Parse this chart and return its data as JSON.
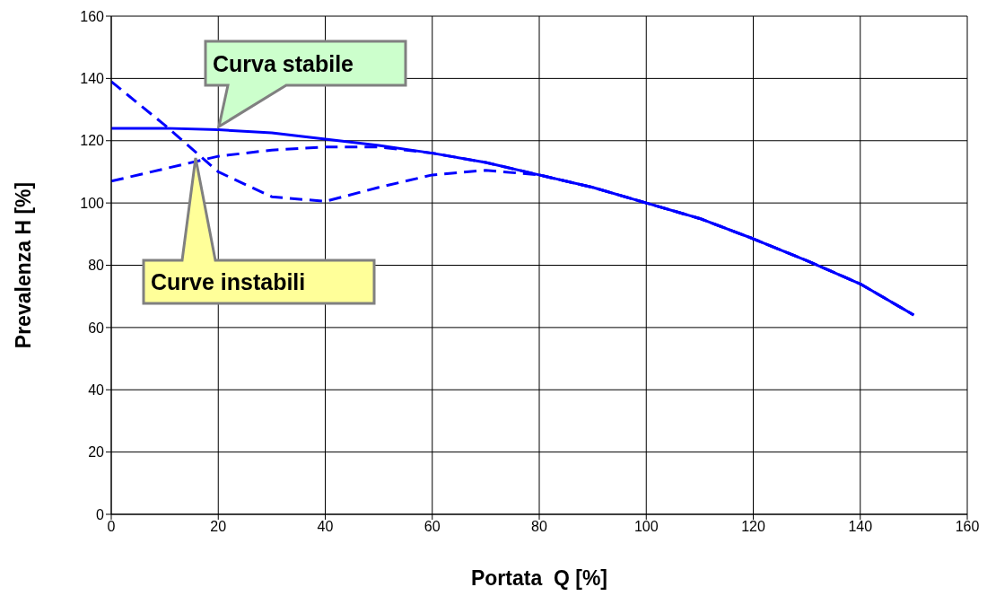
{
  "chart_data": {
    "type": "line",
    "xlabel": "Portata  Q [%]",
    "ylabel": "Prevalenza H [%]",
    "x": [
      0,
      10,
      20,
      30,
      40,
      50,
      60,
      70,
      80,
      90,
      100,
      110,
      120,
      130,
      140,
      150
    ],
    "series": [
      {
        "color": "#0000ff",
        "line_style": "solid",
        "values": [
          124,
          124,
          123.5,
          122.5,
          120.5,
          118.5,
          116,
          113,
          109,
          105,
          100,
          95,
          88.5,
          81.5,
          74,
          64
        ]
      },
      {
        "color": "#0000ff",
        "line_style": "dashed",
        "values": [
          107,
          111,
          115,
          117,
          118,
          118,
          116,
          113,
          109,
          105,
          100,
          95,
          88.5,
          81.5,
          74,
          64
        ]
      },
      {
        "color": "#0000ff",
        "line_style": "dashed",
        "values": [
          139,
          125,
          110,
          102,
          100.5,
          105,
          109,
          110.5,
          109,
          105,
          100,
          95,
          88.5,
          81.5,
          74,
          64
        ]
      }
    ],
    "annotations": [
      "Curva stabile",
      "Curve instabili"
    ],
    "xlim": [
      0,
      160
    ],
    "xticks": [
      0,
      20,
      40,
      60,
      80,
      100,
      120,
      140,
      160
    ],
    "ylim": [
      0,
      160
    ],
    "yticks": [
      0,
      20,
      40,
      60,
      80,
      100,
      120,
      140,
      160
    ],
    "grid": true,
    "legend": false,
    "marker": "none"
  }
}
